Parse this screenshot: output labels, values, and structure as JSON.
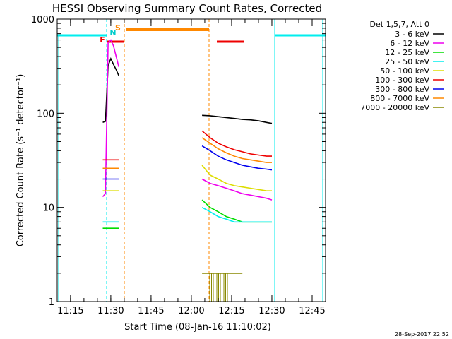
{
  "chart_data": {
    "type": "line",
    "title": "HESSI Observing Summary Count Rates, Corrected",
    "xlabel": "Start Time (08-Jan-16 11:10:02)",
    "ylabel": "Corrected Count Rate (s⁻¹ detector⁻¹)",
    "yscale": "log",
    "ylim": [
      1,
      1000
    ],
    "xlim": [
      "11:10:02",
      "12:50:00"
    ],
    "x_ticks": [
      "11:15",
      "11:30",
      "11:45",
      "12:00",
      "12:15",
      "12:30",
      "12:45"
    ],
    "y_ticks": [
      "1",
      "10",
      "100",
      "1000"
    ],
    "legend": {
      "title": "Det 1,5,7, Att 0",
      "placement": "right",
      "entries": [
        {
          "label": "3 - 6 keV",
          "color": "#000000"
        },
        {
          "label": "6 - 12 keV",
          "color": "#ee00ee"
        },
        {
          "label": "12 - 25 keV",
          "color": "#00dd00"
        },
        {
          "label": "25 - 50 keV",
          "color": "#00eeee"
        },
        {
          "label": "50 - 100 keV",
          "color": "#dddd00"
        },
        {
          "label": "100 - 300 keV",
          "color": "#ee0000"
        },
        {
          "label": "300 - 800 keV",
          "color": "#0000ee"
        },
        {
          "label": "800 - 7000 keV",
          "color": "#ff8800"
        },
        {
          "label": "7000 - 20000 keV",
          "color": "#888800"
        }
      ]
    },
    "flags": [
      {
        "label": "F",
        "color": "#ee0000"
      },
      {
        "label": "N",
        "color": "#00cccc"
      },
      {
        "label": "S",
        "color": "#ff8800"
      }
    ],
    "segments": [
      {
        "x": [
          "11:27",
          "11:28",
          "11:29",
          "11:30",
          "11:31",
          "11:32",
          "11:33"
        ],
        "series": [
          {
            "band": "3 - 6 keV",
            "values": [
              80,
              82,
              320,
              380,
              330,
              290,
              250
            ]
          },
          {
            "band": "6 - 12 keV",
            "values": [
              13,
              14,
              560,
              600,
              520,
              400,
              310
            ]
          },
          {
            "band": "12 - 25 keV",
            "values": [
              6,
              6,
              6,
              6,
              6,
              6,
              6
            ]
          },
          {
            "band": "25 - 50 keV",
            "values": [
              7,
              7,
              7,
              7,
              7,
              7,
              7
            ]
          },
          {
            "band": "50 - 100 keV",
            "values": [
              15,
              15,
              15,
              15,
              15,
              15,
              15
            ]
          },
          {
            "band": "100 - 300 keV",
            "values": [
              32,
              32,
              32,
              32,
              32,
              32,
              32
            ]
          },
          {
            "band": "300 - 800 keV",
            "values": [
              20,
              20,
              20,
              20,
              20,
              20,
              20
            ]
          },
          {
            "band": "800 - 7000 keV",
            "values": [
              26,
              26,
              26,
              26,
              26,
              26,
              26
            ]
          }
        ]
      },
      {
        "x": [
          "12:04",
          "12:07",
          "12:10",
          "12:13",
          "12:16",
          "12:19",
          "12:22",
          "12:25",
          "12:28",
          "12:30"
        ],
        "series": [
          {
            "band": "3 - 6 keV",
            "values": [
              95,
              94,
              92,
              90,
              88,
              86,
              85,
              83,
              80,
              78
            ]
          },
          {
            "band": "6 - 12 keV",
            "values": [
              20,
              18,
              17,
              16,
              15,
              14,
              13.5,
              13,
              12.5,
              12
            ]
          },
          {
            "band": "12 - 25 keV",
            "values": [
              12,
              10,
              9,
              8,
              7.5,
              7,
              7,
              7,
              7,
              7
            ]
          },
          {
            "band": "25 - 50 keV",
            "values": [
              10,
              9,
              8,
              7.5,
              7,
              7,
              7,
              7,
              7,
              7
            ]
          },
          {
            "band": "50 - 100 keV",
            "values": [
              28,
              22,
              20,
              18,
              17,
              16.5,
              16,
              15.5,
              15,
              15
            ]
          },
          {
            "band": "100 - 300 keV",
            "values": [
              65,
              55,
              48,
              44,
              41,
              39,
              37,
              36,
              35,
              35
            ]
          },
          {
            "band": "300 - 800 keV",
            "values": [
              45,
              40,
              35,
              32,
              30,
              28,
              27,
              26,
              25.5,
              25
            ]
          },
          {
            "band": "800 - 7000 keV",
            "values": [
              55,
              48,
              42,
              38,
              35,
              33,
              32,
              31,
              30,
              30
            ]
          },
          {
            "band": "7000 - 20000 keV",
            "values": [
              2,
              2,
              2,
              2,
              2,
              2,
              null,
              null,
              null,
              null
            ]
          }
        ]
      }
    ]
  },
  "timestamp": "28-Sep-2017 22:52"
}
